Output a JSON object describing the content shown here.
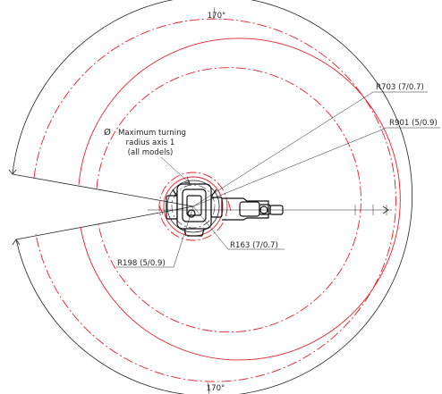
{
  "angles": {
    "top": "170°",
    "bottom": "170°"
  },
  "labels": {
    "turning_symbol": "Ø",
    "turning_line1": "Maximum turning",
    "turning_line2": "radius axis 1",
    "turning_line3": "(all models)",
    "r703": "R703 (7/0.7)",
    "r901": "R901 (5/0.9)",
    "r163": "R163 (7/0.7)",
    "r198": "R198 (5/0.9)"
  },
  "colors": {
    "outline": "#222222",
    "reach": "#e0202a"
  }
}
